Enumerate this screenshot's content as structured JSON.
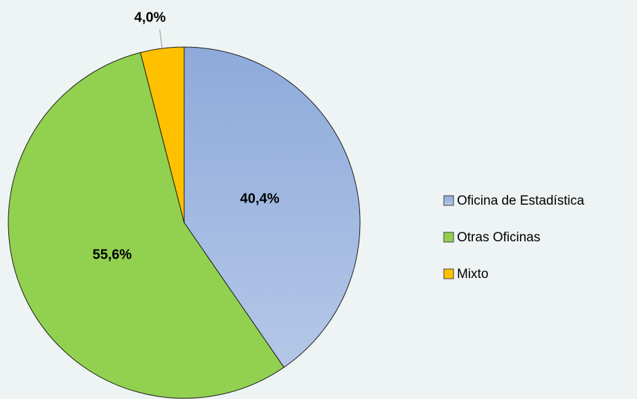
{
  "chart_data": {
    "type": "pie",
    "categories": [
      "Oficina de Estadística",
      "Otras Oficinas",
      "Mixto"
    ],
    "values": [
      40.4,
      55.6,
      4.0
    ],
    "value_labels": [
      "40,4%",
      "55,6%",
      "4,0%"
    ],
    "colors": [
      "#97b0d8",
      "#92d050",
      "#ffc000"
    ],
    "legend": "right"
  }
}
